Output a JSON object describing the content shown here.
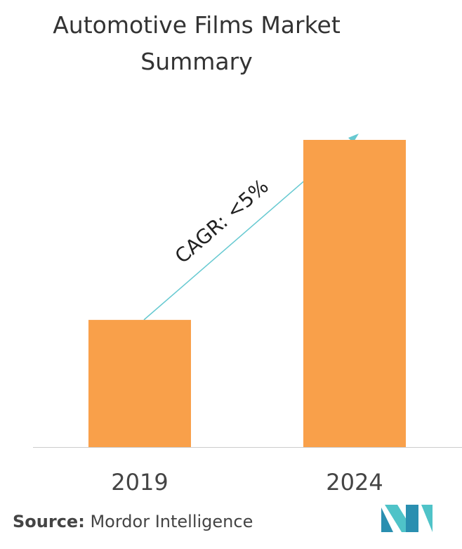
{
  "chart_data": {
    "type": "bar",
    "title": "Automotive Films Market Summary",
    "categories": [
      "2019",
      "2024"
    ],
    "values": [
      41.4,
      100
    ],
    "color": "#f9a04a",
    "annotation": "CAGR: <5%",
    "source_label": "Source:",
    "source": "Mordor Intelligence"
  }
}
